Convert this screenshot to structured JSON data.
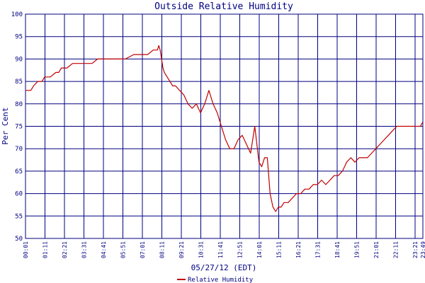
{
  "chart_data": {
    "type": "line",
    "title": "Outside Relative Humidity",
    "xlabel": "05/27/12 (EDT)",
    "ylabel": "Per Cent",
    "ylim": [
      50,
      100
    ],
    "yticks": [
      50,
      55,
      60,
      65,
      70,
      75,
      80,
      85,
      90,
      95,
      100
    ],
    "x_tick_labels": [
      "00:01",
      "01:11",
      "02:21",
      "03:31",
      "04:41",
      "05:51",
      "07:01",
      "08:11",
      "09:21",
      "10:31",
      "11:41",
      "12:51",
      "14:01",
      "15:11",
      "16:21",
      "17:31",
      "18:41",
      "19:51",
      "21:01",
      "22:11",
      "23:21",
      "23:49"
    ],
    "grid": true,
    "legend_position": "bottom-center",
    "series": [
      {
        "name": "Relative Humidity",
        "color": "#c00000",
        "x": [
          "00:01",
          "00:20",
          "00:30",
          "00:45",
          "01:00",
          "01:10",
          "01:30",
          "01:50",
          "02:00",
          "02:10",
          "02:30",
          "02:50",
          "03:00",
          "03:20",
          "03:40",
          "04:00",
          "04:20",
          "04:40",
          "05:00",
          "05:30",
          "06:00",
          "06:30",
          "06:45",
          "07:00",
          "07:20",
          "07:40",
          "07:55",
          "08:00",
          "08:05",
          "08:10",
          "08:15",
          "08:20",
          "08:30",
          "08:40",
          "08:50",
          "09:00",
          "09:15",
          "09:30",
          "09:45",
          "10:00",
          "10:15",
          "10:30",
          "10:45",
          "11:00",
          "11:15",
          "11:30",
          "11:40",
          "11:50",
          "12:00",
          "12:15",
          "12:30",
          "12:45",
          "13:00",
          "13:15",
          "13:30",
          "13:45",
          "14:00",
          "14:10",
          "14:20",
          "14:30",
          "14:40",
          "14:50",
          "15:00",
          "15:10",
          "15:20",
          "15:30",
          "15:45",
          "16:00",
          "16:15",
          "16:30",
          "16:45",
          "17:00",
          "17:15",
          "17:30",
          "17:45",
          "18:00",
          "18:15",
          "18:30",
          "18:45",
          "19:00",
          "19:15",
          "19:30",
          "19:45",
          "20:00",
          "20:15",
          "20:30",
          "20:45",
          "21:00",
          "21:15",
          "21:30",
          "21:45",
          "22:00",
          "22:15",
          "22:30",
          "22:45",
          "23:00",
          "23:15",
          "23:30",
          "23:40",
          "23:49"
        ],
        "values": [
          83,
          83,
          84,
          85,
          85,
          86,
          86,
          87,
          87,
          88,
          88,
          89,
          89,
          89,
          89,
          89,
          90,
          90,
          90,
          90,
          90,
          91,
          91,
          91,
          91,
          92,
          92,
          93,
          92,
          90,
          88,
          87,
          86,
          85,
          84,
          84,
          83,
          82,
          80,
          79,
          80,
          78,
          80,
          83,
          80,
          78,
          76,
          74,
          72,
          70,
          70,
          72,
          73,
          71,
          69,
          75,
          67,
          66,
          68,
          68,
          60,
          57,
          56,
          57,
          57,
          58,
          58,
          59,
          60,
          60,
          61,
          61,
          62,
          62,
          63,
          62,
          63,
          64,
          64,
          65,
          67,
          68,
          67,
          68,
          68,
          68,
          69,
          70,
          71,
          72,
          73,
          74,
          75,
          75,
          75,
          75,
          75,
          75,
          75,
          76
        ]
      }
    ]
  }
}
